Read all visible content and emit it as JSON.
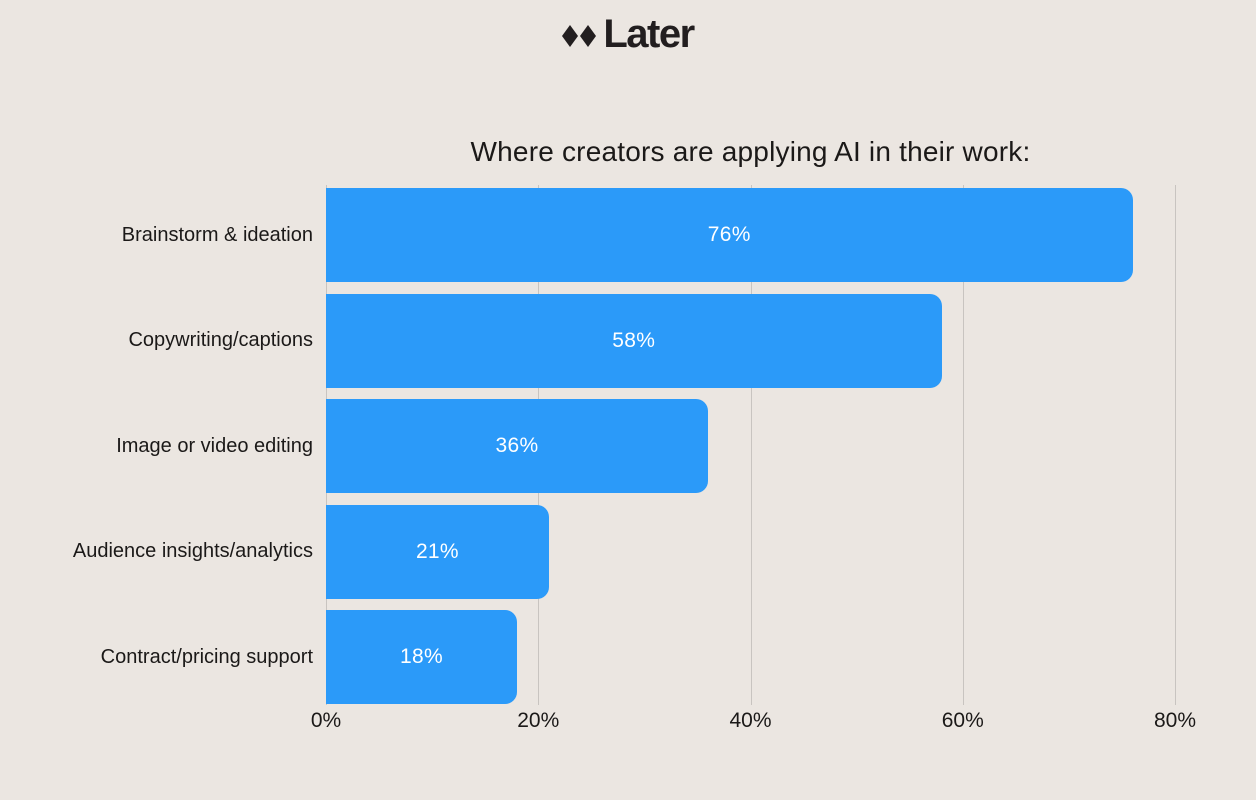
{
  "logo": {
    "brand": "Later",
    "mark_icon": "double-diamond-icon",
    "color": "#221E1F"
  },
  "chart_data": {
    "type": "bar",
    "orientation": "horizontal",
    "title": "Where creators are applying AI in their work:",
    "categories": [
      "Brainstorm & ideation",
      "Copywriting/captions",
      "Image or video editing",
      "Audience insights/analytics",
      "Contract/pricing support"
    ],
    "values": [
      76,
      58,
      36,
      21,
      18
    ],
    "value_labels": [
      "76%",
      "58%",
      "36%",
      "21%",
      "18%"
    ],
    "xlabel": "",
    "ylabel": "",
    "xlim": [
      0,
      80
    ],
    "xticks": [
      0,
      20,
      40,
      60,
      80
    ],
    "xtick_labels": [
      "0%",
      "20%",
      "40%",
      "60%",
      "80%"
    ],
    "grid": "vertical-gridlines-on",
    "legend": "none",
    "bar_color": "#2B9AF9",
    "bar_label_color": "#FFFFFF",
    "background_color": "#EBE6E1",
    "gridline_color": "#C8C4C0",
    "text_color": "#1B1918"
  }
}
